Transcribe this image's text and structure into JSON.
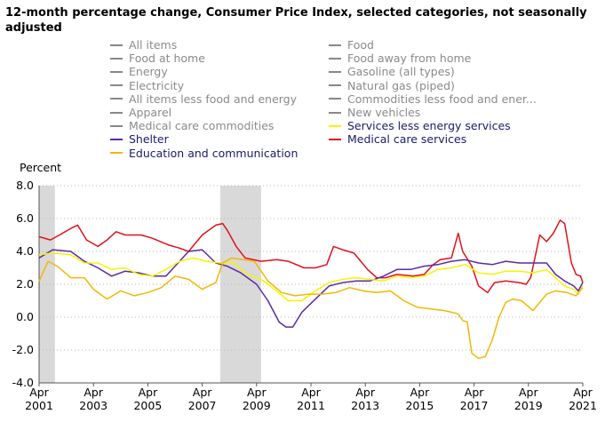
{
  "chart_data": {
    "type": "line",
    "title": "12-month percentage change, Consumer Price Index, selected categories, not seasonally adjusted",
    "ylabel": "Percent",
    "xlabel": "",
    "ylim": [
      -4.0,
      8.0
    ],
    "yticks": [
      "8.0",
      "6.0",
      "4.0",
      "2.0",
      "0.0",
      "-2.0",
      "-4.0"
    ],
    "xticks": [
      {
        "month": "Apr",
        "year": "2001"
      },
      {
        "month": "Apr",
        "year": "2003"
      },
      {
        "month": "Apr",
        "year": "2005"
      },
      {
        "month": "Apr",
        "year": "2007"
      },
      {
        "month": "Apr",
        "year": "2009"
      },
      {
        "month": "Apr",
        "year": "2011"
      },
      {
        "month": "Apr",
        "year": "2013"
      },
      {
        "month": "Apr",
        "year": "2015"
      },
      {
        "month": "Apr",
        "year": "2017"
      },
      {
        "month": "Apr",
        "year": "2019"
      },
      {
        "month": "Apr",
        "year": "2021"
      }
    ],
    "grid": "horizontal dotted",
    "recessions": [
      [
        "2001-04",
        "2001-11"
      ],
      [
        "2007-12",
        "2009-06"
      ]
    ],
    "legend": [
      {
        "name": "All items",
        "active": false
      },
      {
        "name": "Food",
        "active": false
      },
      {
        "name": "Food at home",
        "active": false
      },
      {
        "name": "Food away from home",
        "active": false
      },
      {
        "name": "Energy",
        "active": false
      },
      {
        "name": "Gasoline (all types)",
        "active": false
      },
      {
        "name": "Electricity",
        "active": false
      },
      {
        "name": "Natural gas (piped)",
        "active": false
      },
      {
        "name": "All items less food and energy",
        "active": false
      },
      {
        "name": "Commodities less food and ener...",
        "active": false
      },
      {
        "name": "Apparel",
        "active": false
      },
      {
        "name": "New vehicles",
        "active": false
      },
      {
        "name": "Medical care commodities",
        "active": false
      },
      {
        "name": "Services less energy services",
        "active": true,
        "color": "#f5f500"
      },
      {
        "name": "Shelter",
        "active": true,
        "color": "#5b2aa6"
      },
      {
        "name": "Medical care services",
        "active": true,
        "color": "#e0101b"
      },
      {
        "name": "Education and communication",
        "active": true,
        "color": "#f2b705"
      }
    ],
    "inactive_color": "#888888",
    "series": [
      {
        "name": "Medical care services",
        "color": "#e0101b",
        "points": [
          [
            "2001-04",
            4.9
          ],
          [
            "2001-09",
            4.7
          ],
          [
            "2002-01",
            5.0
          ],
          [
            "2002-06",
            5.4
          ],
          [
            "2002-09",
            5.6
          ],
          [
            "2003-01",
            4.7
          ],
          [
            "2003-06",
            4.3
          ],
          [
            "2003-10",
            4.7
          ],
          [
            "2004-02",
            5.2
          ],
          [
            "2004-06",
            5.0
          ],
          [
            "2005-01",
            5.0
          ],
          [
            "2005-06",
            4.8
          ],
          [
            "2006-01",
            4.4
          ],
          [
            "2006-06",
            4.2
          ],
          [
            "2006-10",
            4.0
          ],
          [
            "2007-04",
            5.0
          ],
          [
            "2007-10",
            5.6
          ],
          [
            "2008-01",
            5.7
          ],
          [
            "2008-03",
            5.3
          ],
          [
            "2008-07",
            4.3
          ],
          [
            "2008-11",
            3.6
          ],
          [
            "2009-06",
            3.4
          ],
          [
            "2010-01",
            3.5
          ],
          [
            "2010-06",
            3.4
          ],
          [
            "2011-01",
            3.0
          ],
          [
            "2011-06",
            3.0
          ],
          [
            "2011-11",
            3.2
          ],
          [
            "2012-02",
            4.3
          ],
          [
            "2012-06",
            4.1
          ],
          [
            "2012-11",
            3.9
          ],
          [
            "2013-02",
            3.4
          ],
          [
            "2013-05",
            2.9
          ],
          [
            "2013-09",
            2.4
          ],
          [
            "2014-01",
            2.4
          ],
          [
            "2014-06",
            2.6
          ],
          [
            "2015-01",
            2.5
          ],
          [
            "2015-06",
            2.6
          ],
          [
            "2015-10",
            3.2
          ],
          [
            "2016-01",
            3.5
          ],
          [
            "2016-06",
            3.6
          ],
          [
            "2016-09",
            5.1
          ],
          [
            "2016-11",
            4.0
          ],
          [
            "2017-03",
            3.1
          ],
          [
            "2017-06",
            1.9
          ],
          [
            "2017-10",
            1.5
          ],
          [
            "2018-01",
            2.1
          ],
          [
            "2018-06",
            2.2
          ],
          [
            "2018-12",
            2.1
          ],
          [
            "2019-03",
            2.0
          ],
          [
            "2019-05",
            2.4
          ],
          [
            "2019-09",
            5.0
          ],
          [
            "2019-12",
            4.6
          ],
          [
            "2020-03",
            5.1
          ],
          [
            "2020-06",
            5.9
          ],
          [
            "2020-08",
            5.7
          ],
          [
            "2020-11",
            3.3
          ],
          [
            "2021-01",
            2.6
          ],
          [
            "2021-03",
            2.5
          ],
          [
            "2021-04",
            2.1
          ]
        ]
      },
      {
        "name": "Shelter",
        "color": "#5b2aa6",
        "points": [
          [
            "2001-04",
            3.6
          ],
          [
            "2001-10",
            4.1
          ],
          [
            "2002-06",
            4.0
          ],
          [
            "2002-12",
            3.4
          ],
          [
            "2003-06",
            3.0
          ],
          [
            "2003-12",
            2.5
          ],
          [
            "2004-06",
            2.8
          ],
          [
            "2004-12",
            2.7
          ],
          [
            "2005-06",
            2.5
          ],
          [
            "2005-12",
            2.5
          ],
          [
            "2006-06",
            3.4
          ],
          [
            "2006-10",
            4.0
          ],
          [
            "2007-04",
            4.1
          ],
          [
            "2007-10",
            3.3
          ],
          [
            "2008-03",
            3.1
          ],
          [
            "2008-09",
            2.7
          ],
          [
            "2009-04",
            2.0
          ],
          [
            "2009-09",
            1.0
          ],
          [
            "2010-02",
            -0.3
          ],
          [
            "2010-05",
            -0.6
          ],
          [
            "2010-08",
            -0.6
          ],
          [
            "2010-12",
            0.3
          ],
          [
            "2011-06",
            1.1
          ],
          [
            "2011-12",
            1.9
          ],
          [
            "2012-06",
            2.1
          ],
          [
            "2012-12",
            2.2
          ],
          [
            "2013-06",
            2.2
          ],
          [
            "2013-12",
            2.5
          ],
          [
            "2014-06",
            2.9
          ],
          [
            "2014-12",
            2.9
          ],
          [
            "2015-06",
            3.1
          ],
          [
            "2015-12",
            3.2
          ],
          [
            "2016-06",
            3.4
          ],
          [
            "2016-12",
            3.5
          ],
          [
            "2017-06",
            3.3
          ],
          [
            "2017-12",
            3.2
          ],
          [
            "2018-06",
            3.4
          ],
          [
            "2018-12",
            3.3
          ],
          [
            "2019-06",
            3.3
          ],
          [
            "2019-12",
            3.3
          ],
          [
            "2020-04",
            2.6
          ],
          [
            "2020-08",
            2.2
          ],
          [
            "2020-12",
            1.9
          ],
          [
            "2021-02",
            1.6
          ],
          [
            "2021-04",
            2.1
          ]
        ]
      },
      {
        "name": "Services less energy services",
        "color": "#f5f500",
        "points": [
          [
            "2001-04",
            3.8
          ],
          [
            "2001-10",
            3.9
          ],
          [
            "2002-06",
            3.8
          ],
          [
            "2002-12",
            3.3
          ],
          [
            "2003-06",
            3.3
          ],
          [
            "2003-12",
            2.9
          ],
          [
            "2004-06",
            3.0
          ],
          [
            "2004-12",
            2.6
          ],
          [
            "2005-06",
            2.5
          ],
          [
            "2005-12",
            2.9
          ],
          [
            "2006-06",
            3.4
          ],
          [
            "2006-12",
            3.6
          ],
          [
            "2007-06",
            3.4
          ],
          [
            "2007-12",
            3.3
          ],
          [
            "2008-06",
            3.3
          ],
          [
            "2008-12",
            2.6
          ],
          [
            "2009-06",
            2.3
          ],
          [
            "2009-12",
            1.7
          ],
          [
            "2010-06",
            1.0
          ],
          [
            "2010-12",
            1.0
          ],
          [
            "2011-06",
            1.6
          ],
          [
            "2011-12",
            2.1
          ],
          [
            "2012-06",
            2.3
          ],
          [
            "2012-12",
            2.4
          ],
          [
            "2013-06",
            2.3
          ],
          [
            "2013-12",
            2.2
          ],
          [
            "2014-06",
            2.5
          ],
          [
            "2014-12",
            2.4
          ],
          [
            "2015-06",
            2.5
          ],
          [
            "2015-12",
            2.9
          ],
          [
            "2016-06",
            3.0
          ],
          [
            "2016-12",
            3.2
          ],
          [
            "2017-06",
            2.7
          ],
          [
            "2017-12",
            2.6
          ],
          [
            "2018-06",
            2.8
          ],
          [
            "2018-12",
            2.8
          ],
          [
            "2019-06",
            2.7
          ],
          [
            "2019-12",
            2.9
          ],
          [
            "2020-04",
            2.4
          ],
          [
            "2020-08",
            1.9
          ],
          [
            "2020-12",
            1.7
          ],
          [
            "2021-02",
            1.4
          ],
          [
            "2021-04",
            1.9
          ]
        ]
      },
      {
        "name": "Education and communication",
        "color": "#f2b705",
        "points": [
          [
            "2001-04",
            2.2
          ],
          [
            "2001-08",
            3.4
          ],
          [
            "2001-12",
            3.1
          ],
          [
            "2002-06",
            2.4
          ],
          [
            "2002-12",
            2.4
          ],
          [
            "2003-04",
            1.7
          ],
          [
            "2003-10",
            1.1
          ],
          [
            "2004-04",
            1.6
          ],
          [
            "2004-10",
            1.3
          ],
          [
            "2005-04",
            1.5
          ],
          [
            "2005-10",
            1.8
          ],
          [
            "2006-04",
            2.5
          ],
          [
            "2006-10",
            2.3
          ],
          [
            "2007-04",
            1.7
          ],
          [
            "2007-10",
            2.1
          ],
          [
            "2008-01",
            3.3
          ],
          [
            "2008-05",
            3.6
          ],
          [
            "2008-10",
            3.5
          ],
          [
            "2009-03",
            3.4
          ],
          [
            "2009-09",
            2.2
          ],
          [
            "2010-03",
            1.5
          ],
          [
            "2010-09",
            1.3
          ],
          [
            "2011-03",
            1.4
          ],
          [
            "2011-09",
            1.4
          ],
          [
            "2012-03",
            1.5
          ],
          [
            "2012-09",
            1.8
          ],
          [
            "2013-03",
            1.6
          ],
          [
            "2013-09",
            1.5
          ],
          [
            "2014-03",
            1.6
          ],
          [
            "2014-09",
            1.0
          ],
          [
            "2015-03",
            0.6
          ],
          [
            "2015-09",
            0.5
          ],
          [
            "2016-03",
            0.4
          ],
          [
            "2016-09",
            0.2
          ],
          [
            "2016-11",
            -0.2
          ],
          [
            "2017-01",
            -0.3
          ],
          [
            "2017-03",
            -2.2
          ],
          [
            "2017-06",
            -2.5
          ],
          [
            "2017-09",
            -2.4
          ],
          [
            "2017-12",
            -1.4
          ],
          [
            "2018-03",
            0.0
          ],
          [
            "2018-06",
            0.9
          ],
          [
            "2018-09",
            1.1
          ],
          [
            "2019-01",
            1.0
          ],
          [
            "2019-06",
            0.4
          ],
          [
            "2019-12",
            1.4
          ],
          [
            "2020-04",
            1.6
          ],
          [
            "2020-09",
            1.5
          ],
          [
            "2021-01",
            1.3
          ],
          [
            "2021-04",
            1.8
          ]
        ]
      }
    ]
  }
}
